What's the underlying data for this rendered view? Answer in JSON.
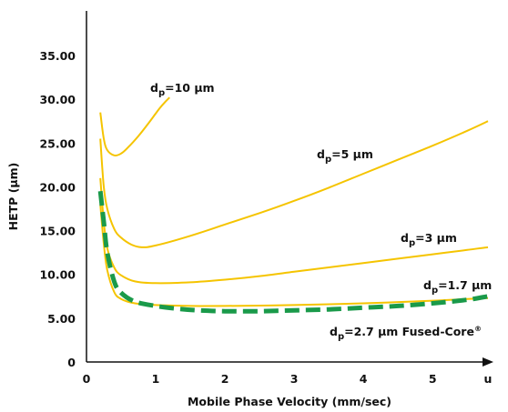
{
  "chart_data": {
    "type": "line",
    "title": "",
    "xlabel": "Mobile Phase Velocity (mm/sec)",
    "ylabel": "HETP (µm)",
    "xlim": [
      0,
      5.8
    ],
    "ylim": [
      0,
      40
    ],
    "x_ticks": [
      "0",
      "1",
      "2",
      "3",
      "4",
      "5",
      "u"
    ],
    "y_ticks": [
      "0",
      "5.00",
      "10.00",
      "15.00",
      "20.00",
      "25.00",
      "30.00",
      "35.00"
    ],
    "grid": false,
    "legend": "none",
    "series": [
      {
        "label": {
          "main": "d",
          "sub": "p",
          "rest": "=10 µm",
          "reg": ""
        },
        "color": "#f5c400",
        "style": "solid",
        "x": [
          0.2,
          0.25,
          0.3,
          0.4,
          0.5,
          0.6,
          0.75,
          0.9,
          1.05,
          1.15,
          1.2
        ],
        "y": [
          28.5,
          25.5,
          24.2,
          23.6,
          23.8,
          24.5,
          25.8,
          27.3,
          28.9,
          29.8,
          30.2
        ]
      },
      {
        "label": {
          "main": "d",
          "sub": "p",
          "rest": "=5 µm",
          "reg": ""
        },
        "color": "#f5c400",
        "style": "solid",
        "x": [
          0.2,
          0.25,
          0.3,
          0.4,
          0.5,
          0.65,
          0.8,
          1.0,
          1.5,
          2.0,
          2.5,
          3.0,
          3.5,
          4.0,
          4.5,
          5.0,
          5.5,
          5.8
        ],
        "y": [
          25.5,
          20.0,
          17.5,
          15.2,
          14.2,
          13.4,
          13.1,
          13.3,
          14.4,
          15.7,
          17.0,
          18.4,
          19.9,
          21.5,
          23.1,
          24.7,
          26.4,
          27.5
        ]
      },
      {
        "label": {
          "main": "d",
          "sub": "p",
          "rest": "=3 µm",
          "reg": ""
        },
        "color": "#f5c400",
        "style": "solid",
        "x": [
          0.2,
          0.25,
          0.3,
          0.4,
          0.5,
          0.7,
          1.0,
          1.5,
          2.0,
          2.5,
          3.0,
          3.5,
          4.0,
          4.5,
          5.0,
          5.5,
          5.8
        ],
        "y": [
          21.0,
          16.0,
          13.0,
          10.8,
          9.9,
          9.2,
          9.0,
          9.1,
          9.4,
          9.8,
          10.3,
          10.8,
          11.3,
          11.8,
          12.3,
          12.8,
          13.1
        ]
      },
      {
        "label": {
          "main": "d",
          "sub": "p",
          "rest": "=1.7 µm",
          "reg": ""
        },
        "color": "#f5c400",
        "style": "solid",
        "x": [
          0.2,
          0.25,
          0.3,
          0.4,
          0.5,
          0.7,
          1.0,
          1.5,
          2.0,
          3.0,
          4.0,
          5.0,
          5.5,
          5.8
        ],
        "y": [
          18.0,
          13.5,
          10.5,
          8.0,
          7.2,
          6.7,
          6.5,
          6.4,
          6.4,
          6.5,
          6.7,
          7.0,
          7.2,
          7.3
        ]
      },
      {
        "label": {
          "main": "d",
          "sub": "p",
          "rest": "=2.7 µm Fused-Core",
          "reg": "®"
        },
        "color": "#1a9a4a",
        "style": "dashed",
        "x": [
          0.2,
          0.25,
          0.3,
          0.4,
          0.5,
          0.7,
          1.0,
          1.3,
          1.6,
          2.0,
          2.5,
          3.0,
          3.5,
          4.0,
          4.5,
          5.0,
          5.5,
          5.8
        ],
        "y": [
          19.5,
          16.0,
          12.5,
          9.2,
          7.9,
          6.9,
          6.4,
          6.1,
          5.9,
          5.8,
          5.8,
          5.9,
          6.0,
          6.2,
          6.4,
          6.7,
          7.1,
          7.5
        ]
      }
    ]
  }
}
